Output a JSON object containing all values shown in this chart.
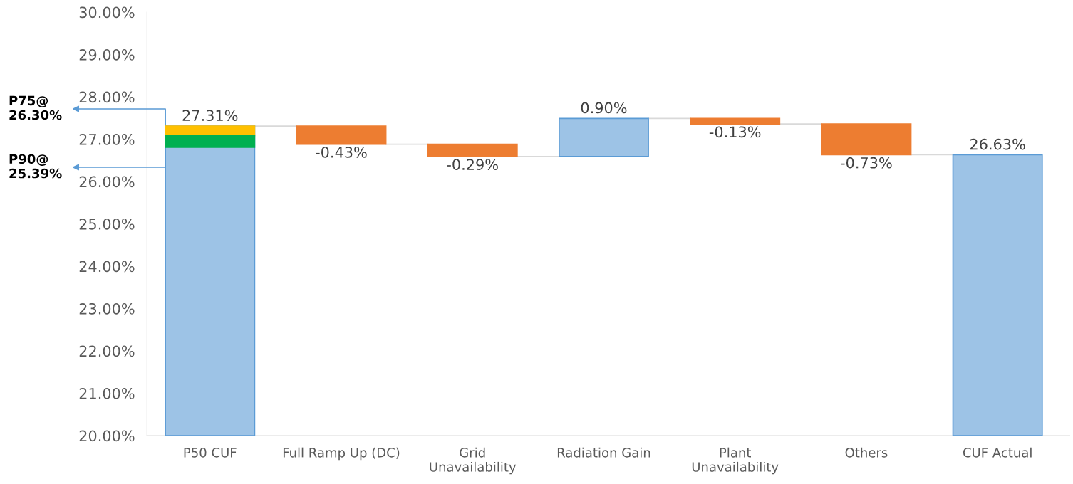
{
  "chart_data": {
    "type": "bar",
    "categories": [
      "P50 CUF",
      "Full Ramp Up (DC)",
      "Grid\nUnavailability",
      "Radiation Gain",
      "Plant\nUnavailability",
      "Others",
      "CUF Actual"
    ],
    "series": [
      {
        "values": [
          7.31,
          -0.43,
          -0.29,
          0.9,
          -0.13,
          -0.73,
          6.63
        ],
        "base": [
          20,
          27.31,
          26.88,
          26.59,
          27.49,
          27.36,
          20
        ],
        "colors": [
          "#9dc3e6",
          "#ed7d31",
          "#ed7d31",
          "#9dc3e6",
          "#ed7d31",
          "#ed7d31",
          "#9dc3e6"
        ],
        "value_labels": [
          "27.31%",
          "-0.43%",
          "-0.29%",
          "0.90%",
          "-0.13%",
          "-0.73%",
          "26.63%"
        ]
      },
      {
        "values": [
          0.23,
          null,
          null,
          null,
          null,
          null,
          null
        ],
        "base": [
          27.08,
          null,
          null,
          null,
          null,
          null,
          null
        ],
        "color": "#ffc000"
      },
      {
        "values": [
          0.27,
          null,
          null,
          null,
          null,
          null,
          null
        ],
        "base": [
          26.81,
          null,
          null,
          null,
          null,
          null,
          null
        ],
        "color": "#00b050"
      }
    ],
    "ylim": [
      20,
      30
    ],
    "yticks": [
      {
        "value": 20,
        "label": "20.00%"
      },
      {
        "value": 21,
        "label": "21.00%"
      },
      {
        "value": 22,
        "label": "22.00%"
      },
      {
        "value": 23,
        "label": "23.00%"
      },
      {
        "value": 24,
        "label": "24.00%"
      },
      {
        "value": 25,
        "label": "25.00%"
      },
      {
        "value": 26,
        "label": "26.00%"
      },
      {
        "value": 27,
        "label": "27.00%"
      },
      {
        "value": 28,
        "label": "28.00%"
      },
      {
        "value": 29,
        "label": "29.00%"
      },
      {
        "value": 30,
        "label": "30.00%"
      }
    ],
    "annotations": [
      "P75@\n26.30%",
      "P90@\n25.39%"
    ],
    "grid": false
  }
}
